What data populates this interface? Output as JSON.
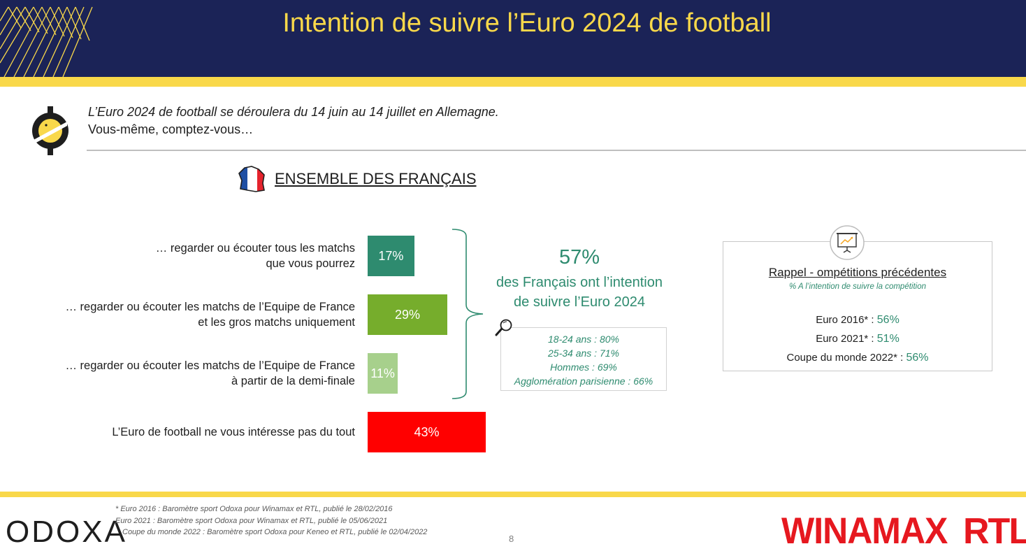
{
  "title": "Intention de suivre l’Euro 2024 de football",
  "question": {
    "line1": "L’Euro 2024 de football se déroulera du 14 juin au 14 juillet en Allemagne.",
    "line2": "Vous-même, comptez-vous…"
  },
  "section_title": "ENSEMBLE DES FRANÇAIS",
  "chart_data": {
    "type": "bar",
    "orientation": "horizontal",
    "unit": "%",
    "categories": [
      [
        "… regarder ou écouter tous les matchs",
        "que vous pourrez"
      ],
      [
        "… regarder ou écouter les matchs de l’Equipe de France",
        "et les gros matchs uniquement"
      ],
      [
        "… regarder ou écouter les matchs de l’Equipe de France",
        "à partir de la demi-finale"
      ],
      [
        "L’Euro de football ne vous intéresse pas du tout"
      ]
    ],
    "values": [
      17,
      29,
      11,
      43
    ],
    "value_labels": [
      "17%",
      "29%",
      "11%",
      "43%"
    ],
    "colors": [
      "#2e8b6f",
      "#76ad2c",
      "#a7d08c",
      "#ff0000"
    ],
    "grid": false
  },
  "summary": {
    "pct": "57%",
    "text_line1": "des Français ont l’intention",
    "text_line2": "de suivre l’Euro 2024"
  },
  "details": [
    "18-24 ans : 80%",
    "25-34 ans : 71%",
    "Hommes : 69%",
    "Agglomération parisienne : 66%"
  ],
  "recall": {
    "title": "Rappel - ompétitions précédentes",
    "subtitle": "% A l’intention de suivre la compétition",
    "rows": [
      {
        "label": "Euro 2016* : ",
        "value": "56%"
      },
      {
        "label": "Euro 2021* : ",
        "value": "51%"
      },
      {
        "label": "Coupe du monde 2022* : ",
        "value": "56%"
      }
    ]
  },
  "footnotes": [
    "* Euro 2016 : Baromètre sport Odoxa pour Winamax et RTL, publié le 28/02/2016",
    "Euro 2021 : Baromètre sport Odoxa pour Winamax et RTL, publié le 05/06/2021",
    "Coupe du monde 2022 : Baromètre sport Odoxa pour Keneo et RTL, publié le 02/04/2022"
  ],
  "page_number": "8",
  "logos": {
    "odoxa": "ODOXA",
    "winamax": "WINAMAX",
    "rtl": "RTL"
  },
  "icons": {
    "question": "odoxa-coin-icon",
    "section": "france-flag-map-icon",
    "details": "magnifier-icon",
    "recall": "presentation-board-icon"
  },
  "colors": {
    "navy": "#1b2357",
    "yellow": "#f9d84a",
    "green": "#2e8b6f"
  }
}
